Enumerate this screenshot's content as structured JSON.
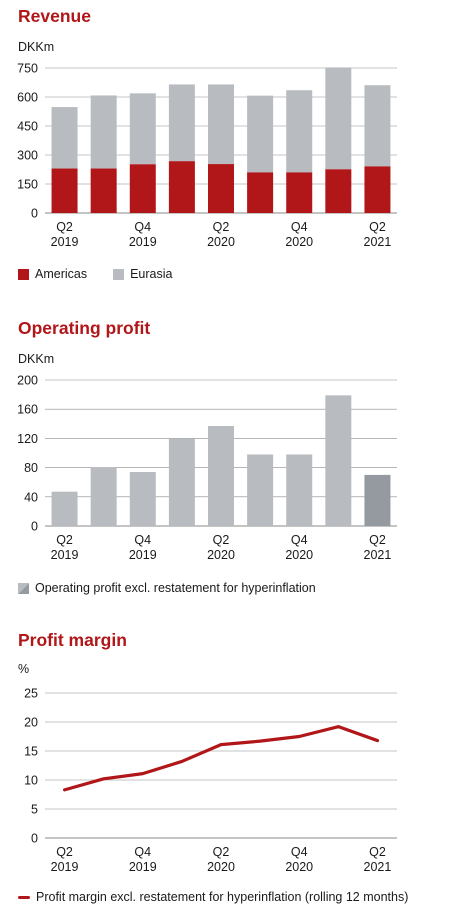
{
  "colors": {
    "accent": "#b11619",
    "americas": "#b11619",
    "eurasia": "#b8bcc0",
    "profit_bar": "#b8bcc0",
    "profit_bar_excl": "#949aa0",
    "grid": "#8a8a8a",
    "line": "#b11619"
  },
  "chart_data": [
    {
      "type": "bar",
      "title": "Revenue",
      "unit": "DKKm",
      "stacked": true,
      "categories": [
        "Q2 2019",
        "Q3 2019",
        "Q4 2019",
        "Q1 2020",
        "Q2 2020",
        "Q3 2020",
        "Q4 2020",
        "Q1 2021",
        "Q2 2021"
      ],
      "x_tick_labels": [
        [
          "Q2",
          "2019"
        ],
        [
          "",
          ""
        ],
        [
          "Q4",
          "2019"
        ],
        [
          "",
          ""
        ],
        [
          "Q2",
          "2020"
        ],
        [
          "",
          ""
        ],
        [
          "Q4",
          "2020"
        ],
        [
          "",
          ""
        ],
        [
          "Q2",
          "2021"
        ]
      ],
      "series": [
        {
          "name": "Americas",
          "values": [
            230,
            230,
            252,
            268,
            253,
            210,
            210,
            226,
            241
          ]
        },
        {
          "name": "Eurasia",
          "values": [
            318,
            378,
            367,
            397,
            412,
            397,
            425,
            527,
            420
          ]
        }
      ],
      "yticks": [
        0,
        150,
        300,
        450,
        600,
        750
      ],
      "ylim": [
        0,
        750
      ],
      "legend_position": "bottom-left",
      "grid": true
    },
    {
      "type": "bar",
      "title": "Operating profit",
      "unit": "DKKm",
      "categories": [
        "Q2 2019",
        "Q3 2019",
        "Q4 2019",
        "Q1 2020",
        "Q2 2020",
        "Q3 2020",
        "Q4 2020",
        "Q1 2021",
        "Q2 2021"
      ],
      "x_tick_labels": [
        [
          "Q2",
          "2019"
        ],
        [
          "",
          ""
        ],
        [
          "Q4",
          "2019"
        ],
        [
          "",
          ""
        ],
        [
          "Q2",
          "2020"
        ],
        [
          "",
          ""
        ],
        [
          "Q4",
          "2020"
        ],
        [
          "",
          ""
        ],
        [
          "Q2",
          "2021"
        ]
      ],
      "values": [
        47,
        80,
        74,
        120,
        137,
        98,
        98,
        179,
        70
      ],
      "highlight_last": true,
      "yticks": [
        0,
        40,
        80,
        120,
        160,
        200
      ],
      "ylim": [
        0,
        200
      ],
      "legend_label": "Operating profit excl. restatement for hyperinflation",
      "legend_position": "bottom-left",
      "grid": true
    },
    {
      "type": "line",
      "title": "Profit margin",
      "unit": "%",
      "categories": [
        "Q2 2019",
        "Q3 2019",
        "Q4 2019",
        "Q1 2020",
        "Q2 2020",
        "Q3 2020",
        "Q4 2020",
        "Q1 2021",
        "Q2 2021"
      ],
      "x_tick_labels": [
        [
          "Q2",
          "2019"
        ],
        [
          "",
          ""
        ],
        [
          "Q4",
          "2019"
        ],
        [
          "",
          ""
        ],
        [
          "Q2",
          "2020"
        ],
        [
          "",
          ""
        ],
        [
          "Q4",
          "2020"
        ],
        [
          "",
          ""
        ],
        [
          "Q2",
          "2021"
        ]
      ],
      "series": [
        {
          "name": "Profit margin excl. restatement for hyperinflation (rolling 12 months)",
          "values": [
            8.3,
            10.2,
            11.1,
            13.2,
            16.1,
            16.7,
            17.5,
            19.2,
            16.8
          ]
        }
      ],
      "yticks": [
        0,
        5,
        10,
        15,
        20,
        25
      ],
      "ylim": [
        0,
        25
      ],
      "legend_position": "bottom-left",
      "grid": true
    }
  ]
}
